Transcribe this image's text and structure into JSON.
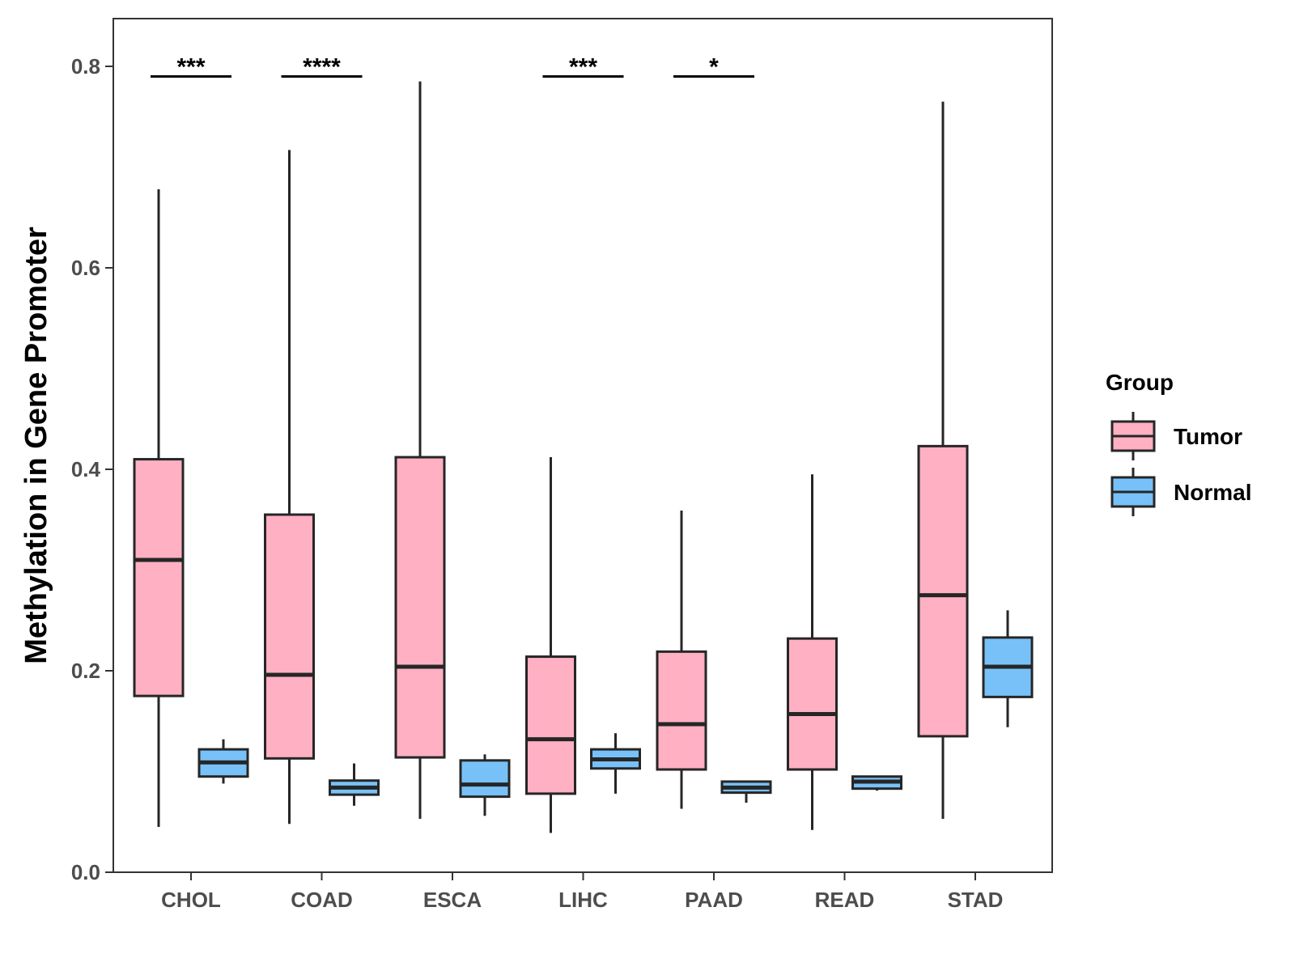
{
  "chart_data": {
    "type": "boxplot",
    "title": "",
    "xlabel": "",
    "ylabel": "Methylation in Gene Promoter",
    "ylim": [
      0,
      0.85
    ],
    "yticks": [
      0.0,
      0.2,
      0.4,
      0.6,
      0.8
    ],
    "ytick_labels": [
      "0.0",
      "0.2",
      "0.4",
      "0.6",
      "0.8"
    ],
    "categories": [
      "CHOL",
      "COAD",
      "ESCA",
      "LIHC",
      "PAAD",
      "READ",
      "STAD"
    ],
    "grid": false,
    "legend": {
      "title": "Group",
      "position": "right",
      "entries": [
        "Tumor",
        "Normal"
      ]
    },
    "series": [
      {
        "name": "Tumor",
        "color": "#FFB0C3",
        "boxes": [
          {
            "min": 0.045,
            "q1": 0.175,
            "median": 0.31,
            "q3": 0.41,
            "max": 0.678
          },
          {
            "min": 0.048,
            "q1": 0.113,
            "median": 0.196,
            "q3": 0.355,
            "max": 0.717
          },
          {
            "min": 0.053,
            "q1": 0.114,
            "median": 0.204,
            "q3": 0.412,
            "max": 0.785
          },
          {
            "min": 0.039,
            "q1": 0.078,
            "median": 0.132,
            "q3": 0.214,
            "max": 0.412
          },
          {
            "min": 0.063,
            "q1": 0.102,
            "median": 0.147,
            "q3": 0.219,
            "max": 0.359
          },
          {
            "min": 0.042,
            "q1": 0.102,
            "median": 0.157,
            "q3": 0.232,
            "max": 0.395
          },
          {
            "min": 0.053,
            "q1": 0.135,
            "median": 0.275,
            "q3": 0.423,
            "max": 0.765
          }
        ]
      },
      {
        "name": "Normal",
        "color": "#78C1F8",
        "boxes": [
          {
            "min": 0.088,
            "q1": 0.095,
            "median": 0.109,
            "q3": 0.122,
            "max": 0.132
          },
          {
            "min": 0.066,
            "q1": 0.077,
            "median": 0.084,
            "q3": 0.091,
            "max": 0.108
          },
          {
            "min": 0.056,
            "q1": 0.075,
            "median": 0.087,
            "q3": 0.111,
            "max": 0.117
          },
          {
            "min": 0.078,
            "q1": 0.103,
            "median": 0.112,
            "q3": 0.122,
            "max": 0.138
          },
          {
            "min": 0.069,
            "q1": 0.079,
            "median": 0.084,
            "q3": 0.09,
            "max": 0.09
          },
          {
            "min": 0.081,
            "q1": 0.083,
            "median": 0.09,
            "q3": 0.095,
            "max": 0.095
          },
          {
            "min": 0.144,
            "q1": 0.174,
            "median": 0.204,
            "q3": 0.233,
            "max": 0.26
          }
        ]
      }
    ],
    "significance": [
      {
        "category": "CHOL",
        "label": "***",
        "y": 0.79
      },
      {
        "category": "COAD",
        "label": "****",
        "y": 0.79
      },
      {
        "category": "LIHC",
        "label": "***",
        "y": 0.79
      },
      {
        "category": "PAAD",
        "label": "*",
        "y": 0.79
      }
    ]
  }
}
